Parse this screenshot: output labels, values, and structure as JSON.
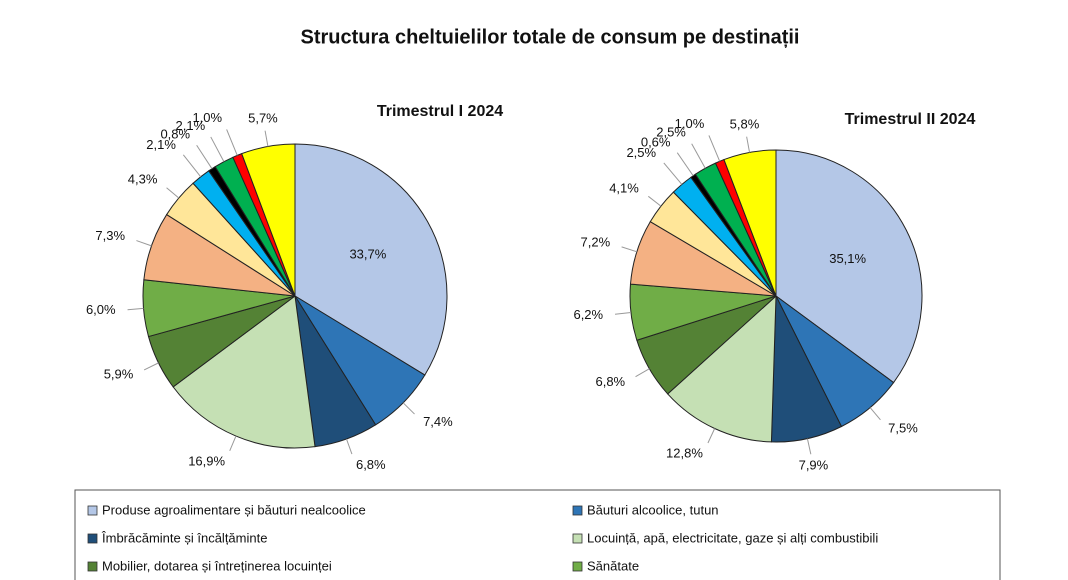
{
  "title": "Structura cheltuielilor totale de consum pe destinații",
  "chart_data": [
    {
      "type": "pie",
      "title": "Trimestrul  I 2024",
      "categories": [
        "Produse agroalimentare și băuturi nealcoolice",
        "Băuturi alcoolice, tutun",
        "Îmbrăcăminte și încălțăminte",
        "Locuință, apă, electricitate, gaze și alți combustibili",
        "Mobilier,  dotarea și întreținerea locuinței",
        "Sănătate",
        null,
        null,
        null,
        null,
        null,
        null,
        null
      ],
      "colors": [
        "#b4c7e7",
        "#2e75b6",
        "#1f4e79",
        "#c5e0b4",
        "#548235",
        "#70ad47",
        "#f4b183",
        "#ffe699",
        "#00b0f0",
        "#000000",
        "#00b050",
        "#ff0000",
        "#ffff00"
      ],
      "values": [
        33.7,
        7.4,
        6.8,
        16.9,
        5.9,
        6.0,
        7.3,
        4.3,
        2.1,
        0.8,
        2.1,
        1.0,
        5.7
      ],
      "value_labels": [
        "33,7%",
        "7,4%",
        "6,8%",
        "16,9%",
        "5,9%",
        "6,0%",
        "7,3%",
        "4,3%",
        "2,1%",
        "0,8%",
        "2,1%",
        "1,0%",
        "5,7%"
      ]
    },
    {
      "type": "pie",
      "title": "Trimestrul  II 2024",
      "values": [
        35.1,
        7.5,
        7.9,
        12.8,
        6.8,
        6.2,
        7.2,
        4.1,
        2.5,
        0.6,
        2.5,
        1.0,
        5.8
      ],
      "value_labels": [
        "35,1%",
        "7,5%",
        "7,9%",
        "12,8%",
        "6,8%",
        "6,2%",
        "7,2%",
        "4,1%",
        "2,5%",
        "0,6%",
        "2,5%",
        "1,0%",
        "5,8%"
      ]
    }
  ]
}
